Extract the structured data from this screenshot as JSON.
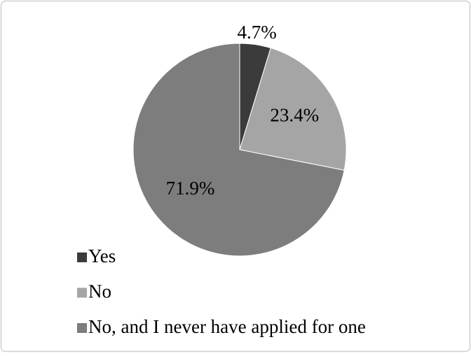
{
  "chart_data": {
    "type": "pie",
    "categories": [
      "Yes",
      "No",
      "No, and I never have applied for one"
    ],
    "values": [
      4.7,
      23.4,
      71.9
    ],
    "value_labels": [
      "4.7%",
      "23.4%",
      "71.9%"
    ],
    "colors": [
      "#3b3b3b",
      "#a5a5a5",
      "#7d7d7d"
    ],
    "legend": "bottom-left"
  }
}
